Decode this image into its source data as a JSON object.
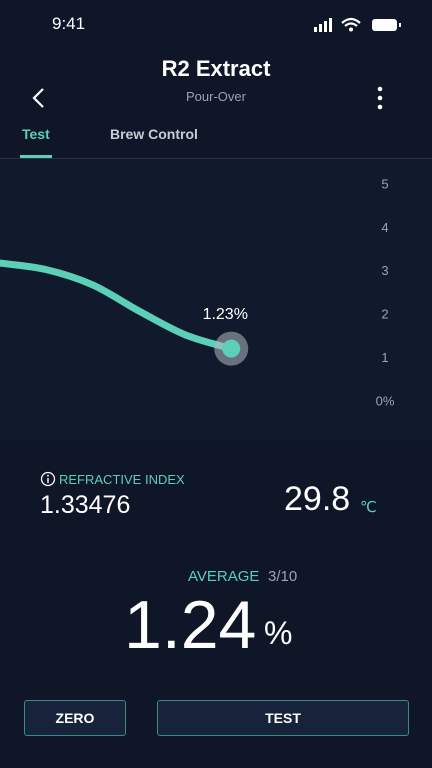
{
  "status_bar": {
    "time": "9:41"
  },
  "header": {
    "title": "R2 Extract",
    "subtitle": "Pour-Over"
  },
  "tabs": [
    "Test",
    "Brew Control"
  ],
  "chart_data": {
    "type": "line",
    "x": [
      0,
      1,
      2,
      3,
      4,
      5
    ],
    "xlim": [
      0,
      8
    ],
    "series": [
      {
        "color": "#5ccfb8",
        "values": [
          3.2,
          3.05,
          2.7,
          2.1,
          1.55,
          1.23
        ],
        "value_labels": [
          null,
          null,
          null,
          null,
          null,
          "1.23%"
        ]
      }
    ],
    "ylim": [
      0,
      5
    ],
    "yticks": [
      {
        "value": 0,
        "label": "0%"
      },
      1,
      2,
      3,
      4,
      5
    ],
    "grid": false
  },
  "readings": {
    "refractive_index_label": "REFRACTIVE INDEX",
    "refractive_index": "1.33476",
    "temperature": "29.8",
    "temperature_unit": "℃",
    "average_label": "AVERAGE",
    "average_count": "3/10",
    "average_value": "1.24",
    "average_unit": "%"
  },
  "buttons": [
    "ZERO",
    "TEST"
  ]
}
